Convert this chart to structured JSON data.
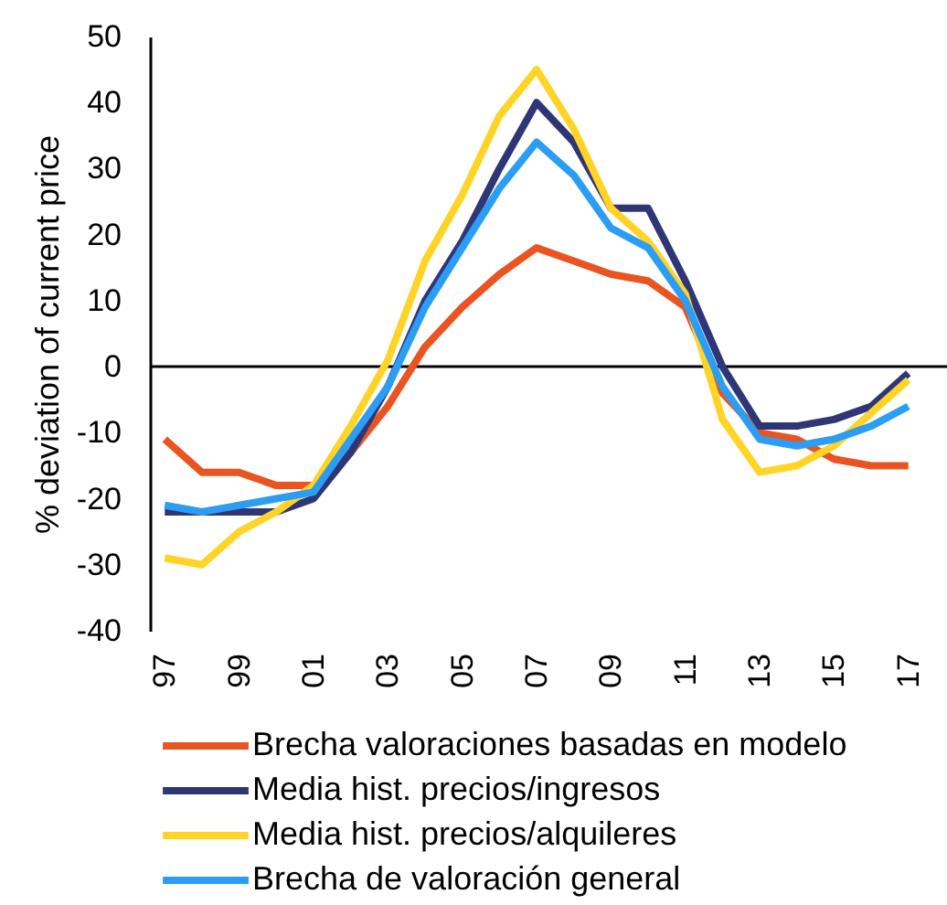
{
  "chart_data": {
    "type": "line",
    "ylabel": "% deviation of current price",
    "categories": [
      "97",
      null,
      "99",
      null,
      "01",
      null,
      "03",
      null,
      "05",
      null,
      "07",
      null,
      "09",
      null,
      "11",
      null,
      "13",
      null,
      "15",
      null,
      "17"
    ],
    "series": [
      {
        "name": "Brecha valoraciones basadas en modelo",
        "color": "#e95420",
        "values": [
          -11,
          -16,
          -16,
          -18,
          -18,
          -13,
          -6,
          3,
          9,
          14,
          18,
          16,
          14,
          13,
          9,
          -4,
          -10,
          -11,
          -14,
          -15,
          -15
        ]
      },
      {
        "name": "Media hist. precios/ingresos",
        "color": "#2f3675",
        "values": [
          -22,
          -22,
          -22,
          -22,
          -20,
          -13,
          -3,
          10,
          19,
          30,
          40,
          34,
          24,
          24,
          13,
          0,
          -9,
          -9,
          -8,
          -6,
          -1
        ]
      },
      {
        "name": "Media hist. precios/alquileres",
        "color": "#ffd426",
        "values": [
          -29,
          -30,
          -25,
          -22,
          -18,
          -9,
          1,
          16,
          26,
          38,
          45,
          36,
          24,
          19,
          11,
          -8,
          -16,
          -15,
          -12,
          -7,
          -2
        ]
      },
      {
        "name": "Brecha de valoración general",
        "color": "#2b9df4",
        "values": [
          -21,
          -22,
          -21,
          -20,
          -19,
          -11,
          -3,
          9,
          18,
          27,
          34,
          29,
          21,
          18,
          10,
          -3,
          -11,
          -12,
          -11,
          -9,
          -6
        ]
      }
    ],
    "ylim": [
      -40,
      50
    ],
    "yticks": [
      -40,
      -30,
      -20,
      -10,
      0,
      10,
      20,
      30,
      40,
      50
    ],
    "ref_lines": [
      {
        "axis": "y",
        "value": 0,
        "color": "#000000"
      }
    ],
    "legend": "bottom"
  }
}
